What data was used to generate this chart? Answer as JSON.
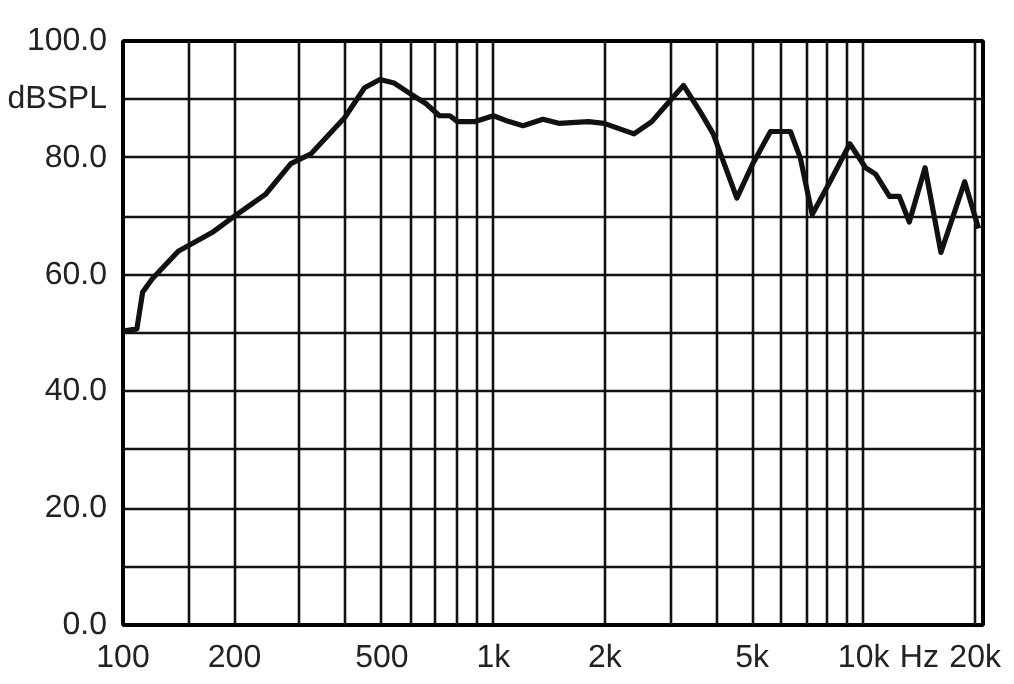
{
  "chart_data": {
    "type": "line",
    "xlabel": "Hz",
    "log": "x",
    "grid": true,
    "marker": "none",
    "line_style": "solid",
    "xlim": [
      100,
      21000
    ],
    "ylim": [
      0,
      100
    ],
    "xticks": [
      100,
      {
        "value": 150,
        "label": null
      },
      200,
      {
        "value": 300,
        "label": null
      },
      {
        "value": 400,
        "label": null
      },
      500,
      {
        "value": 600,
        "label": null
      },
      {
        "value": 700,
        "label": null
      },
      {
        "value": 800,
        "label": null
      },
      {
        "value": 900,
        "label": null
      },
      {
        "value": 1000,
        "label": "1k"
      },
      {
        "value": 2000,
        "label": "2k"
      },
      {
        "value": 3000,
        "label": null
      },
      {
        "value": 4000,
        "label": null
      },
      {
        "value": 5000,
        "label": "5k"
      },
      {
        "value": 6000,
        "label": null
      },
      {
        "value": 7000,
        "label": null
      },
      {
        "value": 8000,
        "label": null
      },
      {
        "value": 9000,
        "label": null
      },
      {
        "value": 10000,
        "label": "10k"
      },
      {
        "value": 20000,
        "label": "20k"
      }
    ],
    "yticks": [
      {
        "value": 0,
        "label": "0.0"
      },
      {
        "value": 10,
        "label": null
      },
      {
        "value": 20,
        "label": "20.0"
      },
      {
        "value": 30,
        "label": null
      },
      {
        "value": 40,
        "label": "40.0"
      },
      {
        "value": 50,
        "label": null
      },
      {
        "value": 60,
        "label": "60.0"
      },
      {
        "value": 70,
        "label": null
      },
      {
        "value": 80,
        "label": "80.0"
      },
      {
        "value": 90,
        "label": "dBSPL"
      },
      {
        "value": 100,
        "label": "100.0"
      }
    ],
    "series": [
      {
        "color": "#111111",
        "x": [
          100,
          109,
          113,
          120,
          141,
          174,
          197,
          243,
          284,
          322,
          397,
          449,
          494,
          540,
          596,
          657,
          715,
          763,
          800,
          894,
          1000,
          1102,
          1203,
          1361,
          1502,
          1806,
          1992,
          2398,
          2678,
          2955,
          3262,
          3642,
          3924,
          4545,
          5019,
          5604,
          6341,
          6743,
          7261,
          8110,
          9176,
          10120,
          10770,
          11740,
          12480,
          13280,
          14650,
          16170,
          18740,
          20430
        ],
        "values": [
          50.3,
          50.7,
          57,
          59.3,
          64,
          67.2,
          69.7,
          73.8,
          79,
          80.7,
          86.9,
          92,
          93.4,
          92.8,
          91,
          89.3,
          87.2,
          87.2,
          86.2,
          86.2,
          87.2,
          86.2,
          85.5,
          86.6,
          85.9,
          86.2,
          85.9,
          84.1,
          86.2,
          89.3,
          92.4,
          87.6,
          84.1,
          73.1,
          79,
          84.5,
          84.5,
          80,
          70.3,
          75.9,
          82.4,
          78.3,
          77.2,
          73.4,
          73.4,
          69,
          78.3,
          63.8,
          75.9,
          67.9
        ]
      }
    ]
  }
}
